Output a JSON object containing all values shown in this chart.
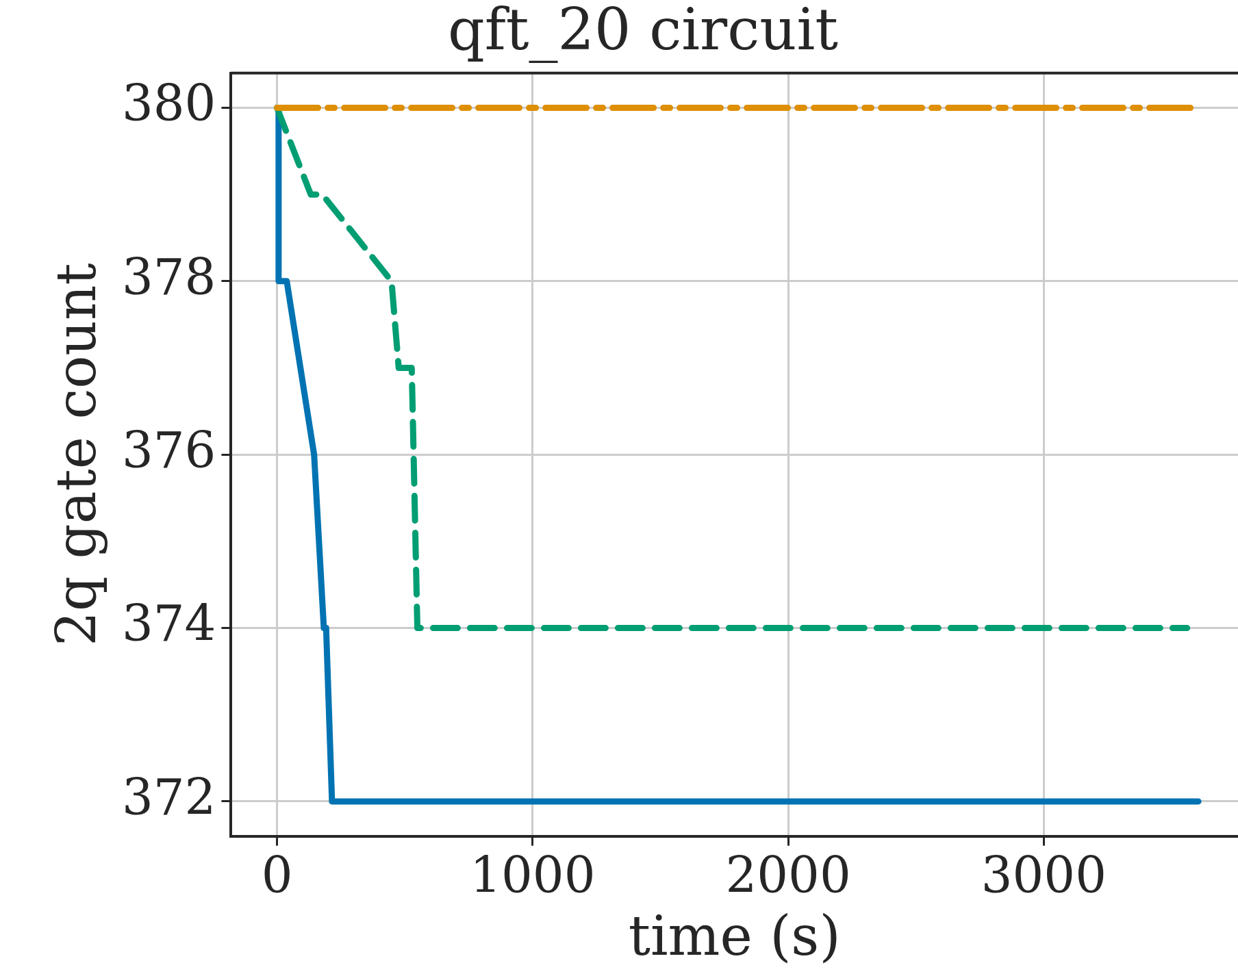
{
  "chart_data": {
    "type": "line",
    "title": "qft_20 circuit",
    "xlabel": "time (s)",
    "ylabel": "2q gate count",
    "xlim": [
      -180,
      3760
    ],
    "ylim": [
      371.6,
      380.4
    ],
    "xticks": [
      0,
      1000,
      2000,
      3000
    ],
    "yticks": [
      372,
      374,
      376,
      378,
      380
    ],
    "grid": true,
    "legend": false,
    "marker": "none",
    "series": [
      {
        "color": "#de8f05",
        "line_style": "dashdot",
        "x": [
          0,
          3605
        ],
        "values": [
          380,
          380
        ]
      },
      {
        "color": "#029e73",
        "line_style": "dashed",
        "x": [
          0,
          132,
          177,
          448,
          476,
          527,
          549,
          3561
        ],
        "values": [
          380,
          379,
          379,
          378,
          377,
          377,
          374,
          374
        ]
      },
      {
        "color": "#0173b2",
        "line_style": "solid",
        "x": [
          0,
          6,
          6,
          38,
          145,
          183,
          192,
          215,
          3605
        ],
        "values": [
          380,
          380,
          378,
          378,
          376,
          374,
          374,
          372,
          372
        ]
      }
    ]
  }
}
